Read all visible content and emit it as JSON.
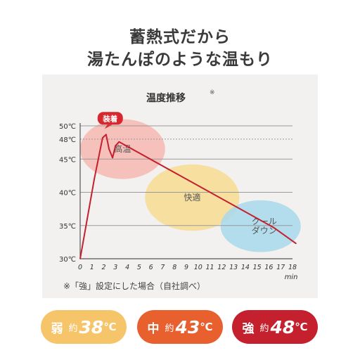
{
  "headline": {
    "line1": "蓄熱式だから",
    "line2": "湯たんぽのような温もり"
  },
  "chart_data": {
    "type": "line",
    "title": "温度推移",
    "title_mark": "※",
    "xlabel": "min",
    "ylabel": "",
    "xlim": [
      0,
      18
    ],
    "ylim": [
      30,
      50
    ],
    "x_ticks": [
      0,
      1,
      2,
      3,
      4,
      5,
      6,
      7,
      8,
      9,
      10,
      11,
      12,
      13,
      14,
      15,
      16,
      17,
      18
    ],
    "y_ticks": [
      {
        "value": 30,
        "label": "30℃"
      },
      {
        "value": 35,
        "label": "35℃"
      },
      {
        "value": 40,
        "label": "40℃"
      },
      {
        "value": 45,
        "label": "45℃"
      },
      {
        "value": 48,
        "label": "48℃",
        "dotted": true
      },
      {
        "value": 50,
        "label": "50℃"
      }
    ],
    "series": [
      {
        "color": "#c4202e",
        "x": [
          0,
          1.2,
          1.9,
          2.2,
          2.45,
          2.75,
          3.0,
          3.3,
          16.4,
          18.3
        ],
        "y": [
          30,
          42,
          48.2,
          48.7,
          46.5,
          45.2,
          47.0,
          47.6,
          34.7,
          32.3
        ]
      }
    ],
    "zones": [
      {
        "label": "高温",
        "color": "#f6b9b0",
        "cx": 3.6,
        "cy": 46.5,
        "rx": 3.6,
        "ry": 4.5
      },
      {
        "label": "快適",
        "color": "#f8dc92",
        "cx": 9.5,
        "cy": 39.2,
        "rx": 4.0,
        "ry": 5.0
      },
      {
        "label": "クールダウン",
        "label_lines": [
          "クール",
          "ダウン"
        ],
        "color": "#a8d8ec",
        "cx": 15.3,
        "cy": 34.9,
        "rx": 3.4,
        "ry": 3.9
      }
    ],
    "callout": {
      "label": "装着",
      "x": 2.55,
      "y": 48.7
    }
  },
  "footnote": "※「強」設定にした場合（自社調べ）",
  "levels": [
    {
      "name": "弱",
      "approx": "約",
      "value": "38",
      "unit": "℃",
      "color": "#f6c56a"
    },
    {
      "name": "中",
      "approx": "約",
      "value": "43",
      "unit": "℃",
      "color": "#e9602f"
    },
    {
      "name": "強",
      "approx": "約",
      "value": "48",
      "unit": "℃",
      "color": "#c4202e"
    }
  ]
}
